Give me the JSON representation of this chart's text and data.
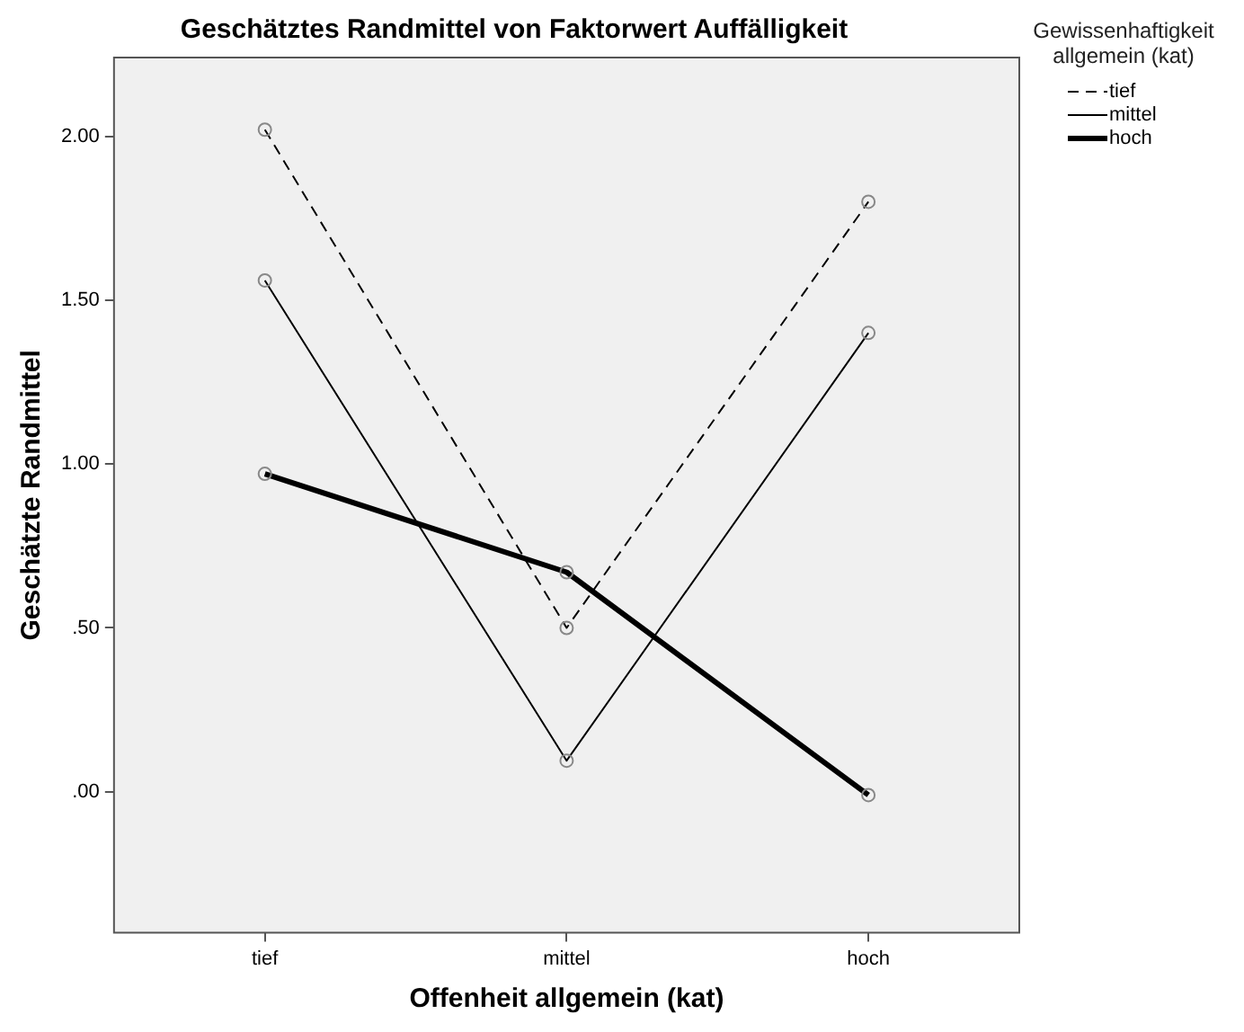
{
  "chart_data": {
    "type": "line",
    "title": "Geschätztes Randmittel von Faktorwert Auffälligkeit",
    "xlabel": "Offenheit allgemein (kat)",
    "ylabel": "Geschätzte Randmittel",
    "legend_title": "Gewissenhaftigkeit allgemein (kat)",
    "legend": "top right",
    "marker": "circle",
    "categories": [
      "tief",
      "mittel",
      "hoch"
    ],
    "series": [
      {
        "name": "tief",
        "color": "#000000",
        "line_style": "dashed",
        "values": [
          2.02,
          0.5,
          1.8
        ]
      },
      {
        "name": "mittel",
        "color": "#000000",
        "line_style": "solid",
        "values": [
          1.56,
          0.095,
          1.4
        ]
      },
      {
        "name": "hoch",
        "color": "#000000",
        "line_style": "solid",
        "values": [
          0.97,
          0.67,
          -0.01
        ]
      }
    ],
    "ylim": [
      -0.43,
      2.24
    ],
    "yticks": [
      {
        "value": 0,
        "label": ".00"
      },
      {
        "value": 0.5,
        "label": ".50"
      },
      {
        "value": 1,
        "label": "1.00"
      },
      {
        "value": 1.5,
        "label": "1.50"
      },
      {
        "value": 2,
        "label": "2.00"
      }
    ]
  }
}
